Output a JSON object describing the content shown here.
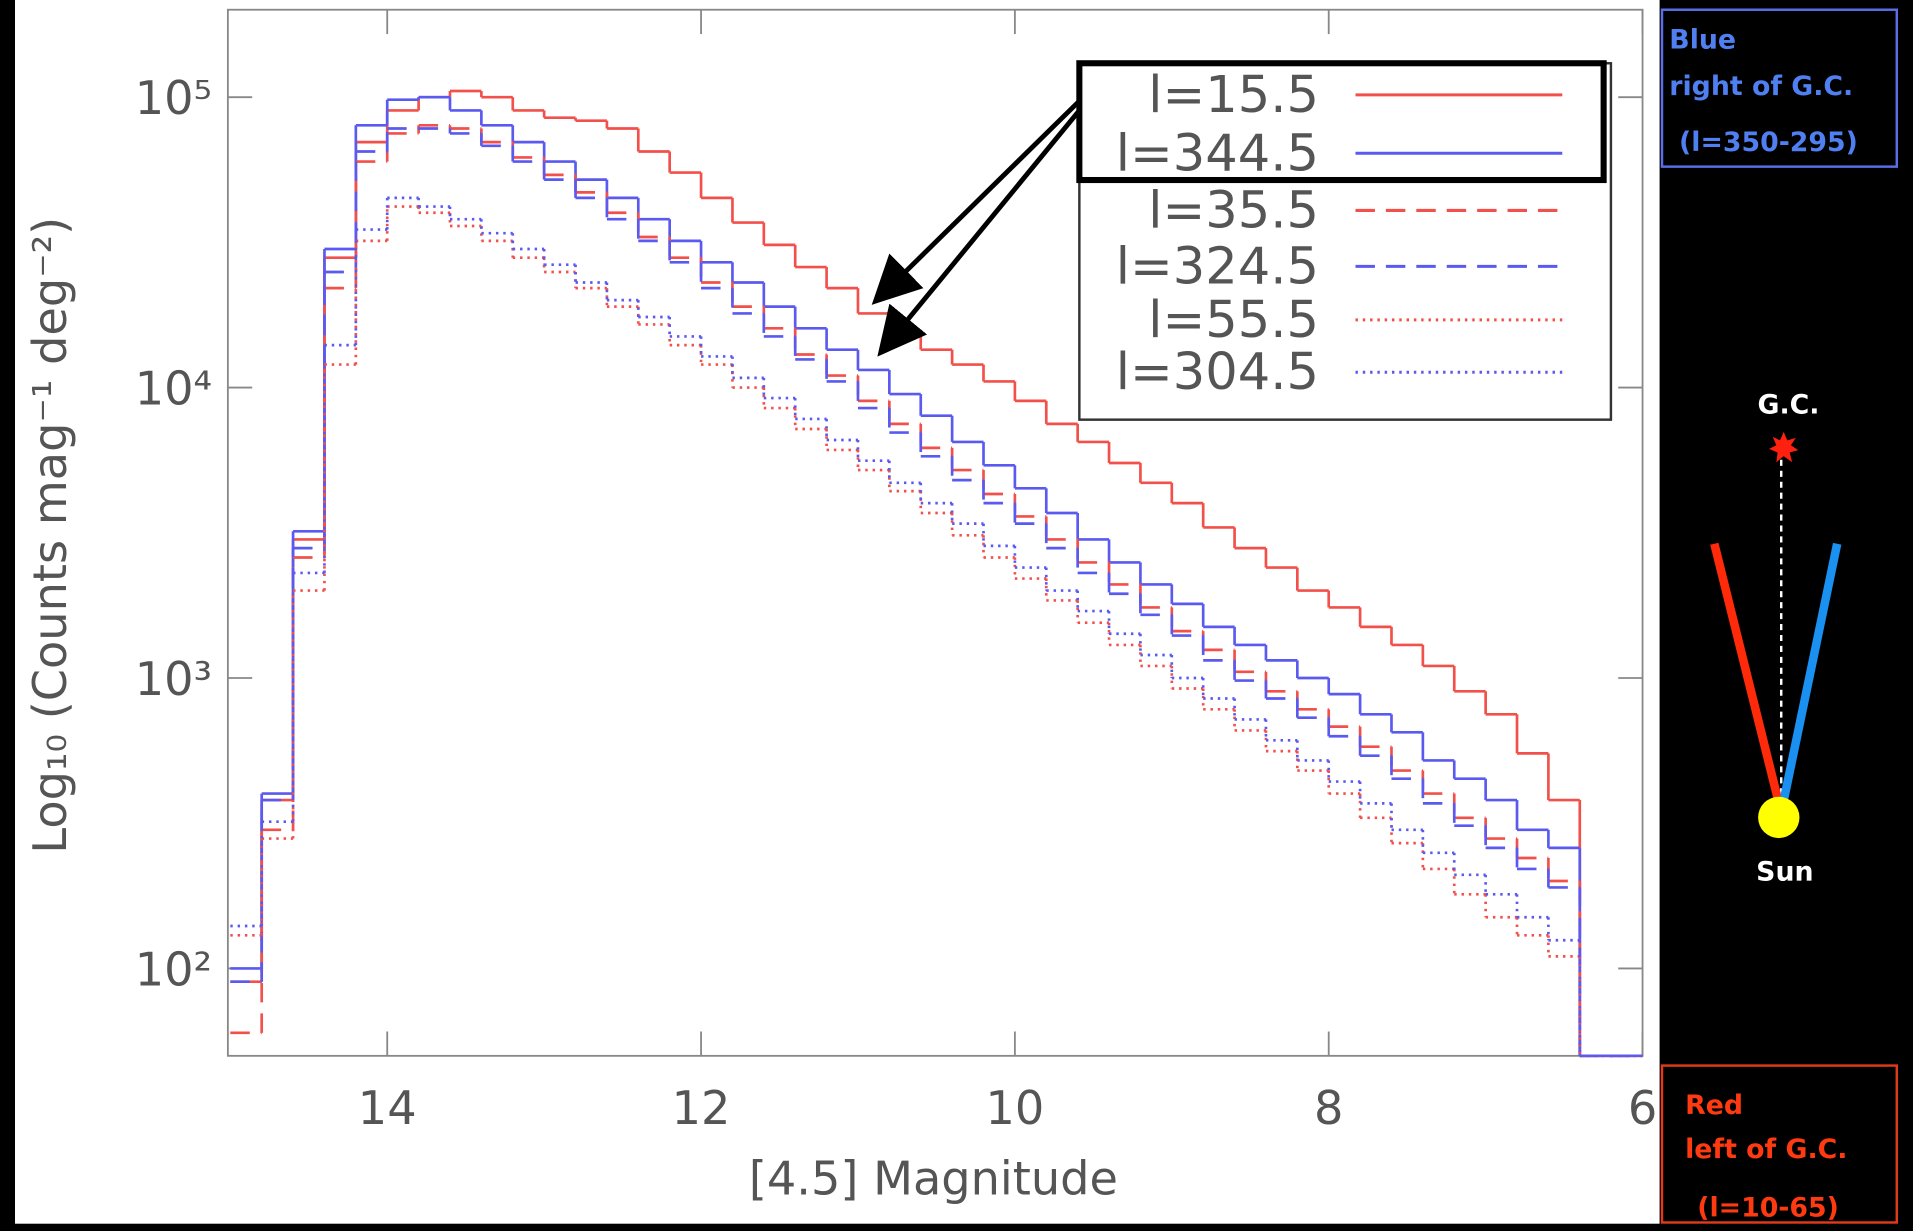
{
  "chart_data": {
    "type": "histogram",
    "x_label": "[4.5] Magnitude",
    "y_label": "Log₁₀ (Counts mag⁻¹ deg⁻²)",
    "log_y": true,
    "xlim": [
      15,
      6
    ],
    "ylim": [
      50,
      200000
    ],
    "xticks": [
      14,
      12,
      10,
      8,
      6
    ],
    "yticks": [
      {
        "value": 100,
        "label": "10²"
      },
      {
        "value": 1000,
        "label": "10³"
      },
      {
        "value": 10000,
        "label": "10⁴"
      },
      {
        "value": 100000,
        "label": "10⁵"
      }
    ],
    "legend": "upper right",
    "bins": [
      15.0,
      14.8,
      14.6,
      14.4,
      14.2,
      14.0,
      13.8,
      13.6,
      13.4,
      13.2,
      13.0,
      12.8,
      12.6,
      12.4,
      12.2,
      12.0,
      11.8,
      11.6,
      11.4,
      11.2,
      11.0,
      10.8,
      10.6,
      10.4,
      10.2,
      10.0,
      9.8,
      9.6,
      9.4,
      9.2,
      9.0,
      8.8,
      8.6,
      8.4,
      8.2,
      8.0,
      7.8,
      7.6,
      7.4,
      7.2,
      7.0,
      6.8,
      6.6,
      6.4,
      6.2,
      6.0
    ],
    "series": [
      {
        "name": "l=15.5",
        "color": "#f2504a",
        "line_style": "solid",
        "values": [
          90,
          380,
          3000,
          28000,
          70000,
          90000,
          100000,
          105000,
          100000,
          90000,
          85000,
          83000,
          78000,
          65000,
          55000,
          45000,
          37000,
          31000,
          26000,
          22000,
          18000,
          15500,
          13500,
          12000,
          10500,
          9000,
          7500,
          6500,
          5500,
          4700,
          4000,
          3300,
          2800,
          2400,
          2000,
          1750,
          1500,
          1300,
          1100,
          900,
          750,
          550,
          380,
          50,
          50
        ]
      },
      {
        "name": "l=344.5",
        "color": "#5a5af0",
        "line_style": "solid",
        "values": [
          100,
          400,
          3200,
          30000,
          80000,
          98000,
          100000,
          90000,
          80000,
          70000,
          60000,
          52000,
          45000,
          38000,
          32000,
          27000,
          23000,
          19000,
          16000,
          13500,
          11500,
          9500,
          8000,
          6500,
          5400,
          4500,
          3700,
          3000,
          2500,
          2100,
          1800,
          1500,
          1300,
          1150,
          1000,
          880,
          750,
          650,
          520,
          450,
          380,
          300,
          260,
          50,
          50
        ]
      },
      {
        "name": "l=35.5",
        "color": "#f2504a",
        "line_style": "dashed",
        "values": [
          60,
          300,
          2600,
          22000,
          60000,
          75000,
          80000,
          78000,
          70000,
          62000,
          54000,
          47000,
          40000,
          33000,
          28000,
          23000,
          19000,
          16000,
          13000,
          11000,
          9000,
          7500,
          6200,
          5200,
          4300,
          3600,
          3000,
          2500,
          2100,
          1750,
          1450,
          1250,
          1050,
          900,
          780,
          680,
          580,
          480,
          400,
          330,
          280,
          240,
          200,
          50,
          50
        ]
      },
      {
        "name": "l=324.5",
        "color": "#5a5af0",
        "line_style": "dashed",
        "values": [
          90,
          380,
          2800,
          25000,
          65000,
          78000,
          78000,
          75000,
          68000,
          60000,
          52000,
          45000,
          38000,
          32000,
          27000,
          22000,
          18000,
          15000,
          12500,
          10500,
          8500,
          7000,
          5800,
          4800,
          4000,
          3400,
          2800,
          2300,
          1950,
          1650,
          1400,
          1150,
          980,
          850,
          730,
          630,
          540,
          450,
          370,
          310,
          260,
          220,
          190,
          50,
          50
        ]
      },
      {
        "name": "l=55.5",
        "color": "#f2504a",
        "line_style": "dotted",
        "values": [
          130,
          280,
          2000,
          12000,
          32000,
          42000,
          40000,
          36000,
          32000,
          28000,
          25000,
          22000,
          19000,
          16500,
          14000,
          12000,
          10000,
          8500,
          7200,
          6100,
          5200,
          4400,
          3700,
          3100,
          2600,
          2200,
          1850,
          1550,
          1300,
          1100,
          920,
          780,
          660,
          560,
          480,
          400,
          330,
          270,
          220,
          180,
          150,
          130,
          110,
          50,
          50
        ]
      },
      {
        "name": "l=304.5",
        "color": "#5a5af0",
        "line_style": "dotted",
        "values": [
          140,
          320,
          2300,
          14000,
          35000,
          45000,
          42000,
          38000,
          34000,
          30000,
          26500,
          23000,
          20000,
          17500,
          15000,
          12800,
          10800,
          9200,
          7800,
          6600,
          5600,
          4700,
          4000,
          3400,
          2850,
          2400,
          2000,
          1700,
          1420,
          1200,
          1000,
          850,
          720,
          610,
          520,
          440,
          370,
          300,
          250,
          210,
          180,
          150,
          125,
          50,
          50
        ]
      }
    ]
  },
  "side_panel": {
    "blue_box": [
      "Blue",
      "right of G.C.",
      "(l=350-295)"
    ],
    "gc_label": "G.C.",
    "sun_label": "Sun",
    "red_box": [
      "Red",
      "left of G.C.",
      "(l=10-65)"
    ]
  }
}
